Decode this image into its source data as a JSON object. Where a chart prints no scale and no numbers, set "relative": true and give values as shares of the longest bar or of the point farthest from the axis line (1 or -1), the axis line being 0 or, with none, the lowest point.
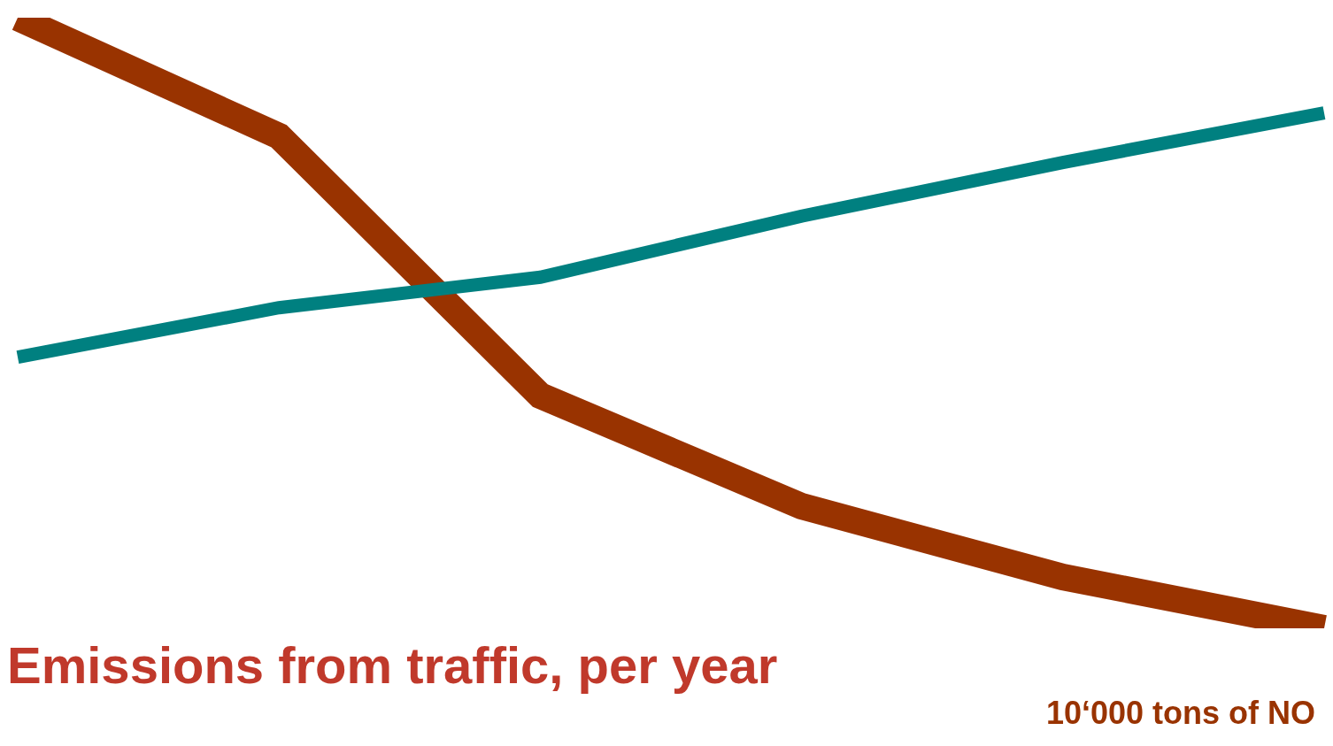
{
  "chart_data": {
    "type": "line",
    "relative": true,
    "title": "Emissions from traffic, per year",
    "subtitle": "10‘000 tons of NO",
    "categories": [
      null,
      null,
      null,
      null,
      null,
      null
    ],
    "series": [
      {
        "color": "#008080",
        "values": [
          0.444,
          0.525,
          0.575,
          0.675,
          0.763,
          0.844
        ]
      },
      {
        "color": "#993300",
        "values": [
          1,
          0.806,
          0.381,
          0.2,
          0.084,
          0
        ]
      }
    ]
  }
}
